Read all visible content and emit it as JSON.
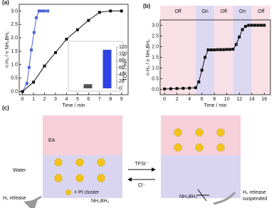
{
  "chart_data": [
    {
      "type": "line",
      "panel": "(a)",
      "xlabel": "Time / min",
      "ylabel": "n H₂ / n NH₃BH₃",
      "xlim": [
        -0.3,
        9.6
      ],
      "ylim": [
        -0.12,
        3.25
      ],
      "xticks": [
        0,
        1,
        2,
        3,
        4,
        5,
        6,
        7,
        8,
        9
      ],
      "yticks": [
        {
          "value": 0,
          "label": "0.0"
        },
        {
          "value": 0.5,
          "label": "0.5"
        },
        {
          "value": 1,
          "label": "1.0"
        },
        {
          "value": 1.5,
          "label": "1.5"
        },
        {
          "value": 2,
          "label": "2.0"
        },
        {
          "value": 2.5,
          "label": "2.5"
        },
        {
          "value": 3,
          "label": "3.0"
        }
      ],
      "series": [
        {
          "color": "#4a63d8",
          "x": [
            0,
            0.4,
            0.6,
            0.8,
            1.05,
            1.25,
            1.5,
            1.75,
            2.0,
            2.3
          ],
          "values": [
            0,
            0.3,
            0.9,
            1.55,
            2.2,
            2.75,
            3.0,
            3.0,
            3.0,
            3.0
          ]
        },
        {
          "color": "#111111",
          "x": [
            0,
            1,
            2,
            3,
            4,
            5,
            6,
            7,
            8,
            9
          ],
          "values": [
            0,
            0.35,
            0.95,
            1.45,
            1.95,
            2.3,
            2.65,
            2.95,
            3.0,
            3.0
          ]
        }
      ]
    },
    {
      "type": "bar",
      "ylabel": "TOF / min⁻¹",
      "categories": [
        null,
        null
      ],
      "values": [
        12,
        112
      ],
      "colors": [
        "#555555",
        "#2f43e0"
      ],
      "ylim": [
        0,
        120
      ],
      "yticks": [
        0,
        20,
        40,
        60,
        80,
        100,
        120
      ]
    },
    {
      "type": "line",
      "panel": "(b)",
      "xlabel": "Time / min",
      "ylabel": "n H₂ / n NH₃BH₃",
      "xlim": [
        -0.7,
        17
      ],
      "ylim": [
        -0.25,
        3.25
      ],
      "xticks": [
        0,
        2,
        4,
        6,
        8,
        10,
        12,
        14,
        16
      ],
      "yticks": [
        {
          "value": 0,
          "label": "0.0"
        },
        {
          "value": 0.5,
          "label": "0.5"
        },
        {
          "value": 1,
          "label": "1.0"
        },
        {
          "value": 1.5,
          "label": "1.5"
        },
        {
          "value": 2,
          "label": "2.0"
        },
        {
          "value": 2.5,
          "label": "2.5"
        },
        {
          "value": 3,
          "label": "3.0"
        }
      ],
      "regions": [
        {
          "label": "Off",
          "start": -0.7,
          "end": 5,
          "color": "#f8e0e6"
        },
        {
          "label": "On",
          "start": 5,
          "end": 8,
          "color": "#ddd8f2"
        },
        {
          "label": "Off",
          "start": 8,
          "end": 11,
          "color": "#f8e0e6"
        },
        {
          "label": "On",
          "start": 11,
          "end": 14,
          "color": "#ddd8f2"
        },
        {
          "label": "Off",
          "start": 14,
          "end": 17,
          "color": "#f8e0e6"
        }
      ],
      "series": [
        {
          "color": "#111111",
          "x": [
            0,
            1,
            2,
            3,
            4,
            5,
            5.5,
            6,
            6.5,
            7,
            7.5,
            8,
            8.5,
            9,
            9.5,
            10,
            10.5,
            11,
            11.5,
            12,
            12.5,
            13,
            13.5,
            14,
            14.5,
            15,
            15.5,
            16
          ],
          "values": [
            0.02,
            0.03,
            0.04,
            0.05,
            0.06,
            0.08,
            0.35,
            0.9,
            1.5,
            1.85,
            1.85,
            1.85,
            1.86,
            1.86,
            1.86,
            1.87,
            1.87,
            1.88,
            2.1,
            2.45,
            2.8,
            2.95,
            3.0,
            3.0,
            3.0,
            3.0,
            3.0,
            3.0
          ]
        }
      ]
    }
  ],
  "diagram": {
    "panel": "(c)",
    "top_phase": "EA",
    "bottom_phase": "Water",
    "forward": "TFSI⁻",
    "backward": "Cl⁻",
    "legend": "= Pt cluster",
    "left_substrate": "NH₃BH₃",
    "right_substrate": "NH₃BH₃",
    "left_result": "H₂ release",
    "right_result": [
      "H₂ release",
      "suspended"
    ]
  }
}
